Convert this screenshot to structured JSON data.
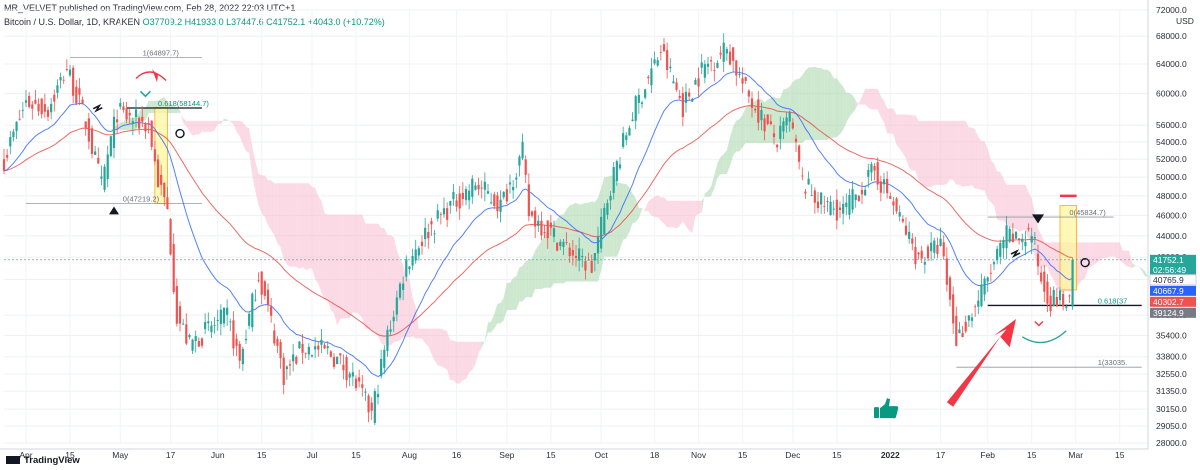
{
  "header": {
    "published": "MR_VELVET published on TradingView.com, Feb 28, 2022 22:03 UTC+1",
    "symbol": "Bitcoin / U.S. Dollar, 1D, KRAKEN",
    "ohlc": "O37709.2 H41933.0 L37447.6 C41752.1 +4043.0 (+10.72%)"
  },
  "footer": {
    "logo": "TradingView"
  },
  "colors": {
    "up": "#26a69a",
    "down": "#ef5350",
    "ema_fast": "#2962ff",
    "ema_slow": "#e53935",
    "cloud_bull": "#a5d6a7",
    "cloud_bear": "#f8bbd0",
    "arrow": "#f23645",
    "thumb": "#089981"
  },
  "chart_data": {
    "type": "line",
    "title": "Bitcoin / U.S. Dollar, 1D, KRAKEN",
    "xlabel": "",
    "ylabel": "USD",
    "y_scale": "log",
    "ylim": [
      28000,
      72000
    ],
    "unit_label": "USD",
    "y_ticks": [
      "72000.0",
      "68000.0",
      "64000.0",
      "60000.0",
      "56000.0",
      "54000.0",
      "52000.0",
      "50000.0",
      "48000.0",
      "46000.0",
      "44000.0",
      "42000.0",
      "40000.0",
      "37000.0",
      "35400.0",
      "33800.0",
      "32550.0",
      "31350.0",
      "30150.0",
      "29050.0",
      "28000.0"
    ],
    "x_ticks": [
      "Apr",
      "15",
      "May",
      "17",
      "Jun",
      "15",
      "Jul",
      "15",
      "Aug",
      "16",
      "Sep",
      "15",
      "Oct",
      "18",
      "Nov",
      "15",
      "Dec",
      "15",
      "2022",
      "17",
      "Feb",
      "15",
      "Mar",
      "15"
    ],
    "price_series": [
      [
        "2021-03-25",
        52000
      ],
      [
        "2021-04-01",
        58900
      ],
      [
        "2021-04-08",
        58000
      ],
      [
        "2021-04-14",
        63500
      ],
      [
        "2021-04-20",
        56300
      ],
      [
        "2021-04-25",
        49100
      ],
      [
        "2021-04-30",
        57700
      ],
      [
        "2021-05-03",
        57000
      ],
      [
        "2021-05-10",
        56000
      ],
      [
        "2021-05-13",
        49600
      ],
      [
        "2021-05-16",
        46400
      ],
      [
        "2021-05-19",
        37000
      ],
      [
        "2021-05-23",
        34700
      ],
      [
        "2021-05-28",
        35700
      ],
      [
        "2021-06-04",
        36900
      ],
      [
        "2021-06-08",
        33400
      ],
      [
        "2021-06-14",
        40500
      ],
      [
        "2021-06-19",
        35500
      ],
      [
        "2021-06-22",
        32500
      ],
      [
        "2021-06-28",
        34500
      ],
      [
        "2021-07-06",
        34200
      ],
      [
        "2021-07-13",
        32700
      ],
      [
        "2021-07-20",
        29800
      ],
      [
        "2021-07-25",
        35400
      ],
      [
        "2021-07-31",
        41500
      ],
      [
        "2021-08-07",
        44600
      ],
      [
        "2021-08-14",
        47000
      ],
      [
        "2021-08-22",
        49300
      ],
      [
        "2021-08-30",
        47000
      ],
      [
        "2021-09-06",
        52700
      ],
      [
        "2021-09-08",
        46100
      ],
      [
        "2021-09-13",
        44900
      ],
      [
        "2021-09-20",
        42800
      ],
      [
        "2021-09-28",
        41000
      ],
      [
        "2021-10-04",
        49200
      ],
      [
        "2021-10-11",
        57500
      ],
      [
        "2021-10-20",
        65900
      ],
      [
        "2021-10-27",
        58400
      ],
      [
        "2021-11-02",
        63200
      ],
      [
        "2021-11-10",
        66300
      ],
      [
        "2021-11-16",
        60300
      ],
      [
        "2021-11-22",
        56300
      ],
      [
        "2021-11-26",
        54000
      ],
      [
        "2021-11-30",
        57000
      ],
      [
        "2021-12-04",
        49400
      ],
      [
        "2021-12-10",
        47200
      ],
      [
        "2021-12-17",
        46400
      ],
      [
        "2021-12-27",
        50700
      ],
      [
        "2022-01-01",
        47700
      ],
      [
        "2022-01-10",
        41800
      ],
      [
        "2022-01-17",
        43100
      ],
      [
        "2022-01-22",
        35100
      ],
      [
        "2022-01-28",
        37700
      ],
      [
        "2022-02-07",
        44000
      ],
      [
        "2022-02-10",
        43600
      ],
      [
        "2022-02-15",
        44300
      ],
      [
        "2022-02-18",
        40000
      ],
      [
        "2022-02-21",
        38300
      ],
      [
        "2022-02-24",
        38300
      ],
      [
        "2022-02-27",
        37700
      ],
      [
        "2022-02-28",
        41752.1
      ]
    ],
    "fib_levels": [
      {
        "label": "1(64897.7)",
        "value": 64897.7
      },
      {
        "label": "0.618(58144.7)",
        "value": 58144.7
      },
      {
        "label": "0(47219.2)",
        "value": 47219.2
      },
      {
        "label": "0(45834.7)",
        "value": 45834.7
      },
      {
        "label": "0.618(37",
        "value": 37800
      },
      {
        "label": "1(33035.",
        "value": 33035
      }
    ],
    "price_tags": [
      {
        "text": "41752.1",
        "sub": "02:56:49",
        "value": 41752.1,
        "bg": "#26a69a",
        "fg": "#ffffff"
      },
      {
        "text": "40765.9",
        "value": 40765.9,
        "bg": "#ffffff",
        "fg": "#2a2e39"
      },
      {
        "text": "40667.9",
        "value": 40667.9,
        "bg": "#2962ff",
        "fg": "#ffffff"
      },
      {
        "text": "40302.7",
        "value": 40302.7,
        "bg": "#ef5350",
        "fg": "#ffffff"
      },
      {
        "text": "39124.9",
        "value": 39124.9,
        "bg": "#787b86",
        "fg": "#ffffff"
      }
    ],
    "grid": true
  }
}
